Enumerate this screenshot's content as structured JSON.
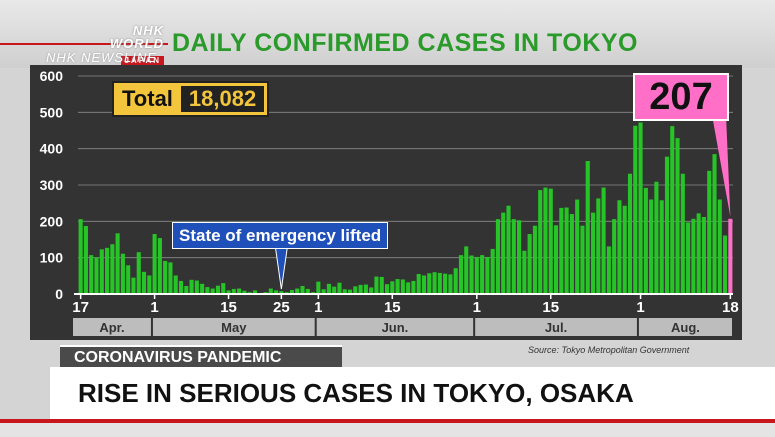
{
  "broadcast": {
    "logo_line1": "NHK WORLD",
    "logo_line2": "JAPAN",
    "program": "NHK NEWSLINE"
  },
  "topic": "CORONAVIRUS PANDEMIC",
  "headline": "RISE IN SERIOUS CASES IN TOKYO, OSAKA",
  "colors": {
    "bar": "#27c427",
    "last_bar": "#ff6ec7",
    "title": "#2a9a2a",
    "panel": "#333333",
    "total_box": "#f2c53d",
    "annotation_box": "#1f4fb8"
  },
  "chart_data": {
    "type": "bar",
    "title": "DAILY CONFIRMED CASES IN TOKYO",
    "source": "Source: Tokyo Metropolitan Government",
    "total_label": "Total",
    "total_value": "18,082",
    "last_value_label": "207",
    "annotation": {
      "text": "State of emergency lifted",
      "date_index": 38
    },
    "ylim": [
      0,
      600
    ],
    "y_ticks": [
      0,
      100,
      200,
      300,
      400,
      500,
      600
    ],
    "grid": true,
    "x_tick_labels": [
      {
        "index": 0,
        "label": "17"
      },
      {
        "index": 14,
        "label": "1"
      },
      {
        "index": 28,
        "label": "15"
      },
      {
        "index": 38,
        "label": "25"
      },
      {
        "index": 45,
        "label": "1"
      },
      {
        "index": 59,
        "label": "15"
      },
      {
        "index": 75,
        "label": "1"
      },
      {
        "index": 89,
        "label": "15"
      },
      {
        "index": 106,
        "label": "1"
      },
      {
        "index": 123,
        "label": "18"
      }
    ],
    "months": [
      {
        "label": "Apr.",
        "start": 0,
        "end": 13
      },
      {
        "label": "May",
        "start": 14,
        "end": 44
      },
      {
        "label": "Jun.",
        "start": 45,
        "end": 74
      },
      {
        "label": "Jul.",
        "start": 75,
        "end": 105
      },
      {
        "label": "Aug.",
        "start": 106,
        "end": 123
      }
    ],
    "values": [
      206,
      187,
      107,
      101,
      123,
      127,
      137,
      167,
      111,
      79,
      45,
      115,
      61,
      51,
      165,
      154,
      91,
      87,
      51,
      36,
      22,
      39,
      37,
      28,
      19,
      15,
      23,
      30,
      10,
      14,
      15,
      9,
      5,
      10,
      2,
      5,
      15,
      10,
      8,
      5,
      11,
      15,
      22,
      14,
      5,
      34,
      13,
      28,
      20,
      31,
      13,
      12,
      21,
      25,
      26,
      18,
      48,
      47,
      27,
      35,
      41,
      40,
      32,
      36,
      55,
      51,
      57,
      60,
      58,
      56,
      54,
      71,
      107,
      131,
      106,
      102,
      107,
      102,
      124,
      206,
      224,
      243,
      206,
      203,
      119,
      165,
      188,
      286,
      293,
      290,
      189,
      237,
      238,
      220,
      260,
      188,
      366,
      224,
      263,
      293,
      131,
      206,
      258,
      243,
      331,
      463,
      472,
      292,
      260,
      309,
      258,
      378,
      462,
      429,
      331,
      197,
      207,
      222,
      212,
      339,
      385,
      260,
      161,
      207
    ]
  }
}
